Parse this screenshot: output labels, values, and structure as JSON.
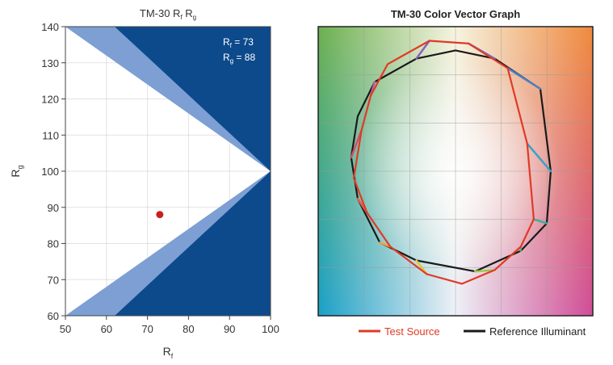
{
  "chart_data": [
    {
      "type": "scatter",
      "title_main": "TM-30 R",
      "title_sub1": "f",
      "title_mid": " R",
      "title_sub2": "g",
      "xlabel_main": "R",
      "xlabel_sub": "f",
      "ylabel_main": "R",
      "ylabel_sub": "g",
      "xlim": [
        50,
        100
      ],
      "ylim": [
        60,
        140
      ],
      "xticks": [
        "50",
        "60",
        "70",
        "80",
        "90",
        "100"
      ],
      "yticks": [
        "60",
        "70",
        "80",
        "90",
        "100",
        "110",
        "120",
        "130",
        "140"
      ],
      "grid": true,
      "point": {
        "x": 73,
        "y": 88
      },
      "annotation_rf": {
        "label": "R",
        "sub": "f",
        "text": " = 73"
      },
      "annotation_rg": {
        "label": "R",
        "sub": "g",
        "text": " = 88"
      },
      "colors": {
        "outside": "#0d4a8c",
        "band": "#7d9fd3",
        "inside": "#ffffff",
        "point": "#c8201e",
        "grid": "#cccccc"
      }
    },
    {
      "type": "line",
      "title": "TM-30 Color Vector Graph",
      "x": [
        -1,
        1
      ],
      "y": [
        -1,
        1
      ],
      "grid": true,
      "legend_position": "bottom",
      "series": [
        {
          "name": "Test Source",
          "color": "#e03a26",
          "points": [
            [
              -0.52,
              0.78
            ],
            [
              -0.2,
              0.95
            ],
            [
              0.1,
              0.93
            ],
            [
              0.4,
              0.75
            ],
            [
              0.55,
              0.2
            ],
            [
              0.6,
              -0.35
            ],
            [
              0.5,
              -0.55
            ],
            [
              0.3,
              -0.72
            ],
            [
              0.05,
              -0.82
            ],
            [
              -0.22,
              -0.75
            ],
            [
              -0.5,
              -0.55
            ],
            [
              -0.68,
              -0.3
            ],
            [
              -0.78,
              -0.05
            ],
            [
              -0.72,
              0.3
            ],
            [
              -0.65,
              0.55
            ]
          ]
        },
        {
          "name": "Reference Illuminant",
          "color": "#1a1a1a",
          "points": [
            [
              -0.62,
              0.65
            ],
            [
              -0.3,
              0.82
            ],
            [
              0.0,
              0.88
            ],
            [
              0.3,
              0.82
            ],
            [
              0.65,
              0.6
            ],
            [
              0.73,
              0.0
            ],
            [
              0.7,
              -0.38
            ],
            [
              0.5,
              -0.58
            ],
            [
              0.15,
              -0.73
            ],
            [
              -0.3,
              -0.65
            ],
            [
              -0.58,
              -0.52
            ],
            [
              -0.75,
              -0.2
            ],
            [
              -0.8,
              0.1
            ],
            [
              -0.75,
              0.4
            ]
          ]
        }
      ]
    }
  ]
}
